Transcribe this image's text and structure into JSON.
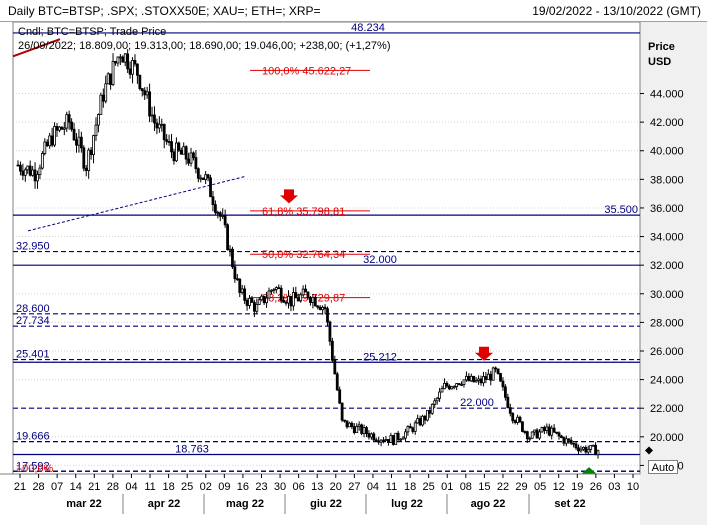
{
  "window": {
    "title": "Daily BTC=BTSP; .SPX; .STOXX50E; XAU=; ETH=; XRP=",
    "date_range": "19/02/2022 - 13/10/2022 (GMT)"
  },
  "legend": {
    "line1": "Cndl; BTC=BTSP; Trade Price",
    "line2": "26/09/2022; 18.809,00; 19.313,00; 18.690,00; 19.046,00; +238,00; (+1,27%)"
  },
  "axis": {
    "price_label_1": "Price",
    "price_label_2": "USD",
    "auto_label": "Auto"
  },
  "colors": {
    "candle": "#000000",
    "level_line": "#00007f",
    "fib_text": "#e00000",
    "arrow_down": "#e00000",
    "arrow_up": "#008000"
  },
  "chart_data": {
    "type": "candlestick",
    "ylim": [
      17400,
      49000
    ],
    "y_ticks": [
      18000,
      20000,
      22000,
      24000,
      26000,
      28000,
      30000,
      32000,
      34000,
      36000,
      38000,
      40000,
      42000,
      44000
    ],
    "y_tick_labels": [
      "18.000",
      "20.000",
      "22.000",
      "24.000",
      "26.000",
      "28.000",
      "30.000",
      "32.000",
      "34.000",
      "36.000",
      "38.000",
      "40.000",
      "42.000",
      "44.000"
    ],
    "x_day_labels": [
      "21",
      "28",
      "07",
      "14",
      "21",
      "28",
      "04",
      "11",
      "18",
      "25",
      "02",
      "09",
      "16",
      "23",
      "30",
      "06",
      "13",
      "20",
      "27",
      "04",
      "11",
      "18",
      "25",
      "01",
      "08",
      "15",
      "22",
      "29",
      "05",
      "12",
      "19",
      "26",
      "03",
      "10"
    ],
    "month_labels": [
      "mar 22",
      "apr 22",
      "mag 22",
      "giu 22",
      "lug 22",
      "ago 22",
      "set 22"
    ],
    "last_price": 19046,
    "levels": [
      {
        "price": 48234,
        "label": "48.234",
        "style": "solid"
      },
      {
        "price": 35500,
        "label": "35.500",
        "style": "solid"
      },
      {
        "price": 32950,
        "label": "32.950",
        "style": "dashed"
      },
      {
        "price": 32000,
        "label": "32.000",
        "style": "solid"
      },
      {
        "price": 28600,
        "label": "28.600",
        "style": "dashed"
      },
      {
        "price": 27734,
        "label": "27.734",
        "style": "dashed"
      },
      {
        "price": 25401,
        "label": "25.401",
        "style": "dashed"
      },
      {
        "price": 25212,
        "label": "25.212",
        "style": "solid"
      },
      {
        "price": 22000,
        "label": "22.000",
        "style": "dashed"
      },
      {
        "price": 19666,
        "label": "19.666",
        "style": "dashed"
      },
      {
        "price": 18763,
        "label": "18.763",
        "style": "solid"
      },
      {
        "price": 17592,
        "label": "17.592",
        "style": "dashed"
      },
      {
        "price": 17600,
        "label": "17.600",
        "style": "dashed"
      }
    ],
    "fib_levels": [
      {
        "price": 45622,
        "label": "100,0% 45.622,27"
      },
      {
        "price": 35798,
        "label": "61,8% 35.798,81"
      },
      {
        "price": 32764,
        "label": "50,0% 32.764,34"
      },
      {
        "price": 29730,
        "label": "38,2% 29.729,87"
      },
      {
        "price": 17400,
        "label": "100,0%"
      }
    ],
    "weekly_closes": [
      39000,
      38500,
      41000,
      42000,
      39000,
      44000,
      47000,
      45500,
      42000,
      40000,
      39500,
      38000,
      35000,
      30000,
      29000,
      30500,
      29500,
      30000,
      29000,
      21000,
      20500,
      20000,
      19800,
      20500,
      21500,
      23500,
      24000,
      23800,
      24500,
      21500,
      20000,
      20500,
      19800,
      19200,
      19046
    ]
  }
}
